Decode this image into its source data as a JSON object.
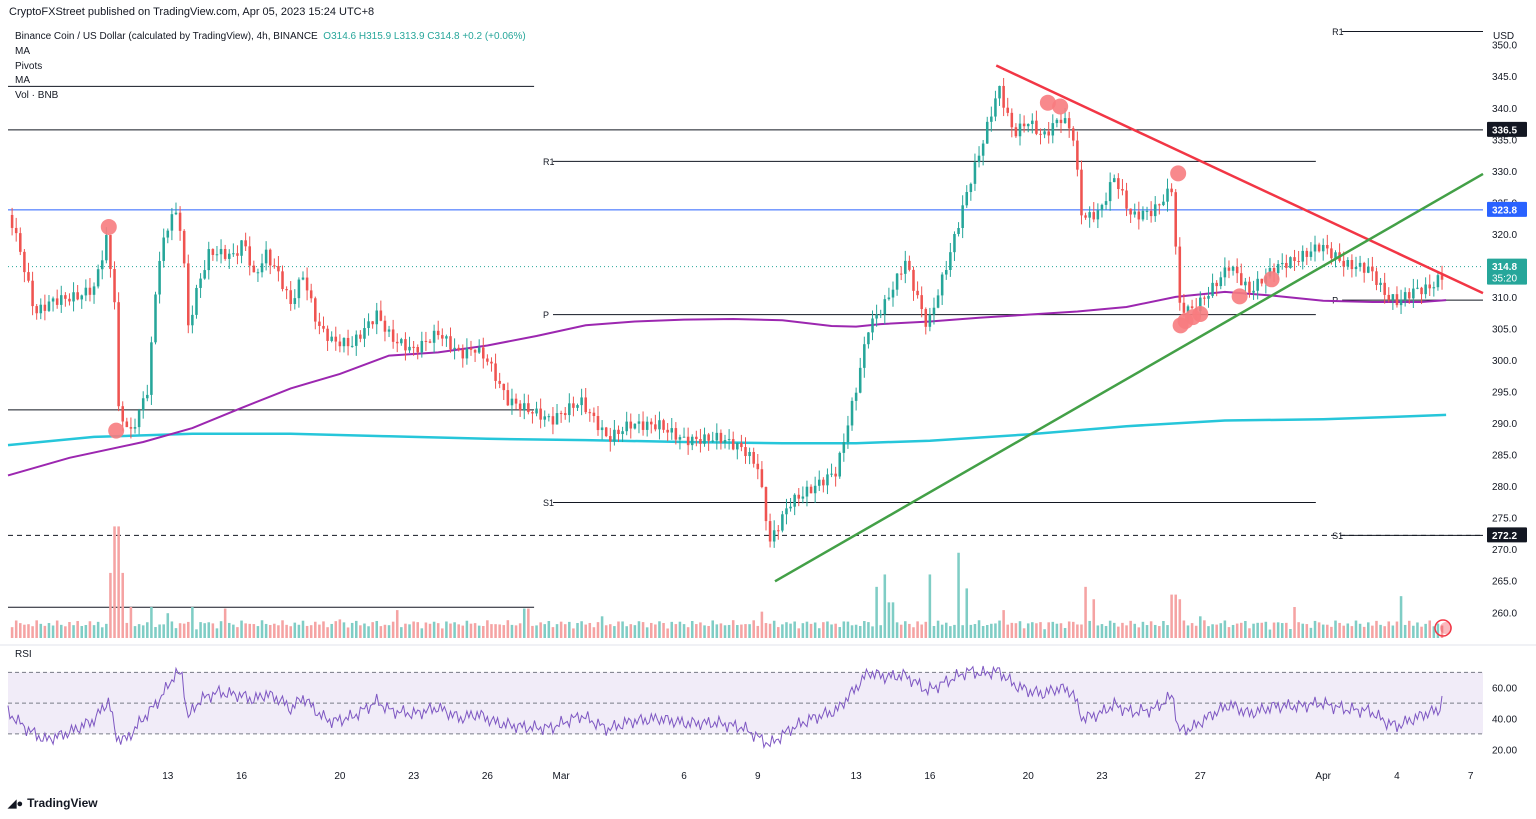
{
  "header": {
    "published": "CryptoFXStreet published on TradingView.com, Apr 05, 2023 15:24 UTC+8"
  },
  "legend": {
    "symbol": "Binance Coin / US Dollar (calculated by TradingView), 4h, BINANCE",
    "open": "O314.6",
    "high": "H315.9",
    "low": "L313.9",
    "close": "C314.8",
    "change": "+0.2 (+0.06%)",
    "indicators": [
      "MA",
      "Pivots",
      "MA",
      "Vol · BNB"
    ]
  },
  "footer": {
    "brand": "TradingView",
    "logo_icon": "tradingview-logo-icon"
  },
  "colors": {
    "up": "#26a69a",
    "down": "#ef5350",
    "up_vol": "#7fcdc5",
    "down_vol": "#f5a3a3",
    "trend_red": "#f23645",
    "trend_green": "#43a047",
    "ma_purple": "#9c27b0",
    "ma_cyan": "#26c6da",
    "resistance_blue": "#2962ff",
    "rsi_line": "#7e57c2",
    "rsi_band": "#ede7f6",
    "marker": "#f77c80"
  },
  "chart_data": [
    {
      "type": "candlestick",
      "title": "Binance Coin / US Dollar (calculated by TradingView), 4h, BINANCE",
      "currency_label": "USD",
      "y_ticks": [
        350,
        345,
        340,
        335,
        330,
        325,
        320,
        310,
        305,
        300,
        295,
        290,
        285,
        280,
        275,
        270,
        265,
        260
      ],
      "ylim": [
        255.6,
        353.6
      ],
      "x_ticks": [
        "13",
        "16",
        "20",
        "23",
        "26",
        "Mar",
        "6",
        "9",
        "13",
        "16",
        "20",
        "23",
        "27",
        "Apr",
        "4",
        "7"
      ],
      "x_tick_days": [
        13,
        16,
        20,
        23,
        26,
        29,
        34,
        37,
        41,
        44,
        48,
        51,
        55,
        60,
        63,
        66
      ],
      "x_range_days": [
        6.5,
        66.5
      ],
      "price_labels": [
        {
          "value": 336.5,
          "text": "336.5",
          "bg": "#131722"
        },
        {
          "value": 323.8,
          "text": "323.8",
          "bg": "#2962ff"
        },
        {
          "value": 314.8,
          "text": "314.8",
          "sub": "35:20",
          "bg": "#26a69a"
        },
        {
          "value": 272.2,
          "text": "272.2",
          "bg": "#131722"
        }
      ],
      "horizontal_levels": [
        {
          "value": 343.4,
          "from": 6.5,
          "to": 27.9,
          "style": "solid"
        },
        {
          "value": 336.5,
          "from": 6.5,
          "to": 66.5,
          "style": "solid"
        },
        {
          "value": 323.8,
          "from": 6.5,
          "to": 66.5,
          "style": "blue"
        },
        {
          "value": 292.1,
          "from": 6.5,
          "to": 27.9,
          "style": "solid"
        },
        {
          "value": 260.8,
          "from": 6.5,
          "to": 27.9,
          "style": "solid"
        },
        {
          "value": 272.2,
          "from": 6.5,
          "to": 66.5,
          "style": "dashed"
        }
      ],
      "pivots": [
        {
          "label": "R1",
          "value": 331.5,
          "from": 28.1,
          "to": 59.7
        },
        {
          "label": "P",
          "value": 307.2,
          "from": 28.1,
          "to": 59.7
        },
        {
          "label": "S1",
          "value": 277.4,
          "from": 28.1,
          "to": 59.7
        },
        {
          "label": "R1",
          "value": 352.1,
          "from": 60.2,
          "to": 66.5
        },
        {
          "label": "P",
          "value": 309.5,
          "from": 60.2,
          "to": 66.5
        },
        {
          "label": "S1",
          "value": 272.2,
          "from": 60.2,
          "to": 66.5
        }
      ],
      "trendlines": [
        {
          "name": "descending resistance",
          "from": [
            46.7,
            346.7
          ],
          "to": [
            66.5,
            310.6
          ],
          "color": "#f23645"
        },
        {
          "name": "ascending support",
          "from": [
            37.7,
            264.9
          ],
          "to": [
            66.5,
            329.5
          ],
          "color": "#43a047"
        }
      ],
      "ma_fast": [
        [
          6.5,
          281.7
        ],
        [
          9,
          284.5
        ],
        [
          12,
          287
        ],
        [
          14,
          289.2
        ],
        [
          16,
          292.4
        ],
        [
          18,
          295.5
        ],
        [
          20,
          297.8
        ],
        [
          22,
          300.7
        ],
        [
          24,
          301.2
        ],
        [
          26,
          302.3
        ],
        [
          28,
          303.8
        ],
        [
          30,
          305.5
        ],
        [
          32,
          306.1
        ],
        [
          34,
          306.4
        ],
        [
          36,
          306.5
        ],
        [
          38,
          306.3
        ],
        [
          40,
          305.4
        ],
        [
          41,
          305.3
        ],
        [
          42,
          305.7
        ],
        [
          44,
          306.1
        ],
        [
          46,
          306.7
        ],
        [
          48,
          307.2
        ],
        [
          50,
          307.7
        ],
        [
          52,
          308.4
        ],
        [
          54,
          310
        ],
        [
          56,
          310.8
        ],
        [
          58,
          310.2
        ],
        [
          60,
          309.4
        ],
        [
          62,
          309.2
        ],
        [
          64,
          309.2
        ],
        [
          65,
          309.5
        ]
      ],
      "ma_slow": [
        [
          6.5,
          286.5
        ],
        [
          10,
          287.8
        ],
        [
          14,
          288.3
        ],
        [
          18,
          288.3
        ],
        [
          22,
          287.9
        ],
        [
          26,
          287.5
        ],
        [
          30,
          287.3
        ],
        [
          34,
          287
        ],
        [
          38,
          286.8
        ],
        [
          41,
          286.8
        ],
        [
          44,
          287.2
        ],
        [
          48,
          288.2
        ],
        [
          52,
          289.5
        ],
        [
          56,
          290.4
        ],
        [
          60,
          290.6
        ],
        [
          63,
          291
        ],
        [
          65,
          291.3
        ]
      ],
      "markers": [
        [
          10.6,
          321.1
        ],
        [
          10.9,
          288.8
        ],
        [
          48.8,
          340.8
        ],
        [
          49.3,
          340.2
        ],
        [
          54.1,
          329.6
        ],
        [
          54.2,
          305.5
        ],
        [
          54.4,
          306.2
        ],
        [
          54.7,
          306.8
        ],
        [
          55,
          307.3
        ],
        [
          56.6,
          310.1
        ],
        [
          57.9,
          312.8
        ]
      ],
      "price_path": [
        [
          6.5,
          323
        ],
        [
          7,
          316
        ],
        [
          7.6,
          306
        ],
        [
          8.3,
          308
        ],
        [
          9.3,
          309.1
        ],
        [
          10,
          311
        ],
        [
          10.5,
          319.2
        ],
        [
          10.9,
          308.2
        ],
        [
          11,
          292.3
        ],
        [
          11.5,
          289.2
        ],
        [
          12.2,
          296.8
        ],
        [
          12.6,
          316.7
        ],
        [
          13.2,
          325.2
        ],
        [
          13.6,
          321.7
        ],
        [
          13.8,
          305.8
        ],
        [
          14.2,
          312.5
        ],
        [
          14.7,
          318
        ],
        [
          15.2,
          317.3
        ],
        [
          15.7,
          316.5
        ],
        [
          16.1,
          318.7
        ],
        [
          16.5,
          312.5
        ],
        [
          17,
          315.8
        ],
        [
          17.5,
          312.4
        ],
        [
          18,
          307.5
        ],
        [
          18.5,
          312.1
        ],
        [
          19.1,
          304.2
        ],
        [
          19.7,
          302
        ],
        [
          20.5,
          302.1
        ],
        [
          21.5,
          307.7
        ],
        [
          22.1,
          304.3
        ],
        [
          23,
          302.9
        ],
        [
          24,
          305.7
        ],
        [
          24.9,
          301.9
        ],
        [
          25.5,
          302.4
        ],
        [
          26,
          300.2
        ],
        [
          26.8,
          293.2
        ],
        [
          27.5,
          291.4
        ],
        [
          28.6,
          289
        ],
        [
          29.8,
          292.3
        ],
        [
          30.9,
          287
        ],
        [
          31.8,
          290.1
        ],
        [
          33,
          290.8
        ],
        [
          34,
          288.7
        ],
        [
          35.4,
          288.7
        ],
        [
          36.4,
          286.2
        ],
        [
          37,
          282.8
        ],
        [
          37.5,
          270.5
        ],
        [
          38.3,
          276.2
        ],
        [
          39.2,
          278.2
        ],
        [
          40.2,
          281.1
        ],
        [
          41,
          294.7
        ],
        [
          41.5,
          304.8
        ],
        [
          42.2,
          309.3
        ],
        [
          43,
          316.5
        ],
        [
          43.9,
          306.5
        ],
        [
          44.8,
          318
        ],
        [
          45.6,
          329
        ],
        [
          46.1,
          334.7
        ],
        [
          46.8,
          343.6
        ],
        [
          47.4,
          335.7
        ],
        [
          48,
          337.2
        ],
        [
          48.6,
          334.3
        ],
        [
          49.3,
          337.1
        ],
        [
          49.8,
          335
        ],
        [
          50.2,
          321
        ],
        [
          50.9,
          322.3
        ],
        [
          51.5,
          328.3
        ],
        [
          52.2,
          322.6
        ],
        [
          53.1,
          324.2
        ],
        [
          53.9,
          328.6
        ],
        [
          54.1,
          309.7
        ],
        [
          54.7,
          309.3
        ],
        [
          55.4,
          312.3
        ],
        [
          56.2,
          316.2
        ],
        [
          57,
          311.4
        ],
        [
          58,
          314.3
        ],
        [
          59,
          315.1
        ],
        [
          59.9,
          316.8
        ],
        [
          60.9,
          313.8
        ],
        [
          61.9,
          313.6
        ],
        [
          62.5,
          310.1
        ],
        [
          63,
          309.3
        ],
        [
          63.7,
          311.7
        ],
        [
          64.3,
          312.4
        ],
        [
          64.9,
          314.8
        ]
      ],
      "volume": {
        "spikes": [
          [
            10.7,
            0.42
          ],
          [
            10.9,
            0.72
          ],
          [
            11.1,
            0.42
          ],
          [
            11.5,
            0.2
          ],
          [
            12.3,
            0.2
          ],
          [
            13,
            0.16
          ],
          [
            14,
            0.2
          ],
          [
            15.3,
            0.19
          ],
          [
            16.4,
            0.09
          ],
          [
            18.1,
            0.07
          ],
          [
            20,
            0.12
          ],
          [
            22.3,
            0.18
          ],
          [
            25,
            0.08
          ],
          [
            27.6,
            0.19
          ],
          [
            30.7,
            0.14
          ],
          [
            37.2,
            0.17
          ],
          [
            41.8,
            0.33
          ],
          [
            42.1,
            0.41
          ],
          [
            42.4,
            0.23
          ],
          [
            44,
            0.41
          ],
          [
            45.1,
            0.55
          ],
          [
            45.5,
            0.32
          ],
          [
            47,
            0.18
          ],
          [
            50.3,
            0.33
          ],
          [
            50.6,
            0.25
          ],
          [
            53.9,
            0.28
          ],
          [
            54.1,
            0.25
          ],
          [
            55,
            0.14
          ],
          [
            58.8,
            0.2
          ],
          [
            63.1,
            0.27
          ]
        ]
      },
      "rsi": {
        "label": "RSI",
        "ticks": [
          60,
          40,
          20
        ],
        "band": [
          30,
          70
        ],
        "mid": 50,
        "ylim": [
          15,
          78
        ],
        "values": [
          [
            6.5,
            44
          ],
          [
            7.2,
            34
          ],
          [
            8,
            26
          ],
          [
            9,
            31
          ],
          [
            10,
            39
          ],
          [
            10.6,
            52
          ],
          [
            10.9,
            28
          ],
          [
            11.3,
            26
          ],
          [
            12,
            40
          ],
          [
            12.7,
            53
          ],
          [
            13.3,
            69
          ],
          [
            13.6,
            68
          ],
          [
            13.8,
            40
          ],
          [
            14.3,
            52
          ],
          [
            15,
            57
          ],
          [
            16,
            55
          ],
          [
            16.5,
            52
          ],
          [
            17,
            56
          ],
          [
            17.6,
            52
          ],
          [
            18,
            46
          ],
          [
            18.5,
            54
          ],
          [
            19.2,
            42
          ],
          [
            19.7,
            38
          ],
          [
            20.5,
            41
          ],
          [
            21.5,
            51
          ],
          [
            22.1,
            45
          ],
          [
            23,
            43
          ],
          [
            24,
            47
          ],
          [
            24.9,
            40
          ],
          [
            25.6,
            43
          ],
          [
            26.4,
            37
          ],
          [
            27.2,
            35
          ],
          [
            27.8,
            34
          ],
          [
            28.6,
            34
          ],
          [
            29.8,
            42
          ],
          [
            30.9,
            33
          ],
          [
            31.8,
            38
          ],
          [
            33,
            40
          ],
          [
            34,
            37
          ],
          [
            35.4,
            37
          ],
          [
            36.4,
            34
          ],
          [
            37,
            28
          ],
          [
            37.5,
            23
          ],
          [
            38.3,
            33
          ],
          [
            39.2,
            40
          ],
          [
            40.2,
            45
          ],
          [
            41,
            60
          ],
          [
            41.5,
            70
          ],
          [
            42.2,
            67
          ],
          [
            43,
            68
          ],
          [
            43.9,
            58
          ],
          [
            44.8,
            65
          ],
          [
            45.6,
            71
          ],
          [
            46.1,
            69
          ],
          [
            46.8,
            71
          ],
          [
            47.4,
            62
          ],
          [
            48,
            58
          ],
          [
            48.6,
            56
          ],
          [
            49.3,
            60
          ],
          [
            49.8,
            57
          ],
          [
            50.2,
            40
          ],
          [
            50.9,
            43
          ],
          [
            51.5,
            49
          ],
          [
            52.2,
            44
          ],
          [
            53.1,
            46
          ],
          [
            53.9,
            55
          ],
          [
            54.1,
            32
          ],
          [
            54.7,
            34
          ],
          [
            55.4,
            42
          ],
          [
            56.2,
            49
          ],
          [
            57,
            43
          ],
          [
            58,
            48
          ],
          [
            59,
            48
          ],
          [
            59.9,
            50
          ],
          [
            60.9,
            46
          ],
          [
            61.9,
            45
          ],
          [
            62.5,
            38
          ],
          [
            63,
            35
          ],
          [
            63.7,
            40
          ],
          [
            64.3,
            44
          ],
          [
            64.7,
            45
          ],
          [
            64.9,
            56
          ]
        ]
      }
    }
  ]
}
